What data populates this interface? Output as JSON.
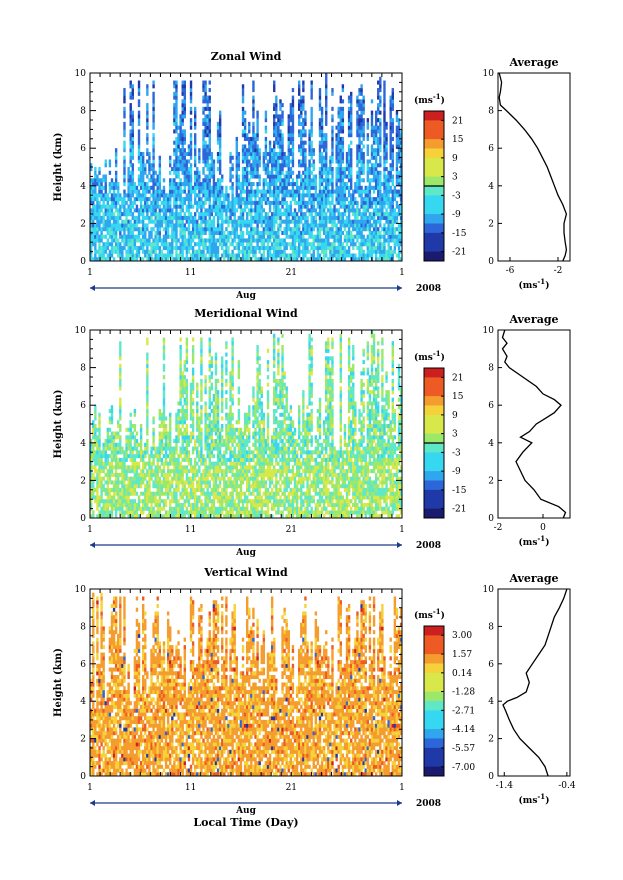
{
  "chart_data": [
    {
      "type": "heatmap",
      "title": "Zonal Wind",
      "ylabel": "Height (km)",
      "ylim": [
        0,
        10
      ],
      "yticks": [
        "0",
        "2",
        "4",
        "6",
        "8",
        "10"
      ],
      "xticks": [
        "1",
        "11",
        "21",
        "1"
      ],
      "xlim_days": [
        1,
        32
      ],
      "xlabel_month": "Aug",
      "year": "2008",
      "colorbar": {
        "unit_prefix": "(ms",
        "unit_exp": "-1",
        "unit_suffix": ")",
        "labels": [
          "21",
          "15",
          "9",
          "3",
          "-3",
          "-9",
          "-15",
          "-21"
        ],
        "range": [
          -24,
          24
        ],
        "zero_line": 0
      },
      "profile": {
        "title": "Average",
        "xticks": [
          "-6",
          "-2"
        ],
        "xlim": [
          -7,
          -1
        ],
        "xunit_prefix": "(ms",
        "xunit_exp": "-1",
        "xunit_suffix": ")",
        "height": [
          0,
          0.3,
          0.6,
          1,
          1.5,
          2,
          2.5,
          3,
          3.5,
          4,
          4.5,
          5,
          5.5,
          6,
          6.5,
          7,
          7.5,
          8,
          8.3,
          8.7,
          9,
          9.5,
          10
        ],
        "value": [
          -1.6,
          -1.4,
          -1.3,
          -1.4,
          -1.5,
          -1.5,
          -1.3,
          -1.6,
          -2.0,
          -2.3,
          -2.6,
          -2.9,
          -3.3,
          -3.7,
          -4.2,
          -4.8,
          -5.5,
          -6.3,
          -6.8,
          -6.9,
          -6.8,
          -6.7,
          -6.9
        ]
      }
    },
    {
      "type": "heatmap",
      "title": "Meridional Wind",
      "ylabel": "Height (km)",
      "ylim": [
        0,
        10
      ],
      "yticks": [
        "0",
        "2",
        "4",
        "6",
        "8",
        "10"
      ],
      "xticks": [
        "1",
        "11",
        "21",
        "1"
      ],
      "xlim_days": [
        1,
        32
      ],
      "xlabel_month": "Aug",
      "year": "2008",
      "colorbar": {
        "unit_prefix": "(ms",
        "unit_exp": "-1",
        "unit_suffix": ")",
        "labels": [
          "21",
          "15",
          "9",
          "3",
          "-3",
          "-9",
          "-15",
          "-21"
        ],
        "range": [
          -24,
          24
        ],
        "zero_line": 0
      },
      "profile": {
        "title": "Average",
        "xticks": [
          "-2",
          "0"
        ],
        "xlim": [
          -2,
          1.2
        ],
        "xunit_prefix": "(ms",
        "xunit_exp": "-1",
        "xunit_suffix": ")",
        "height": [
          0,
          0.3,
          0.6,
          1,
          1.5,
          2,
          2.5,
          3,
          3.5,
          4,
          4.3,
          4.6,
          5,
          5.3,
          5.6,
          6,
          6.3,
          6.6,
          7,
          7.5,
          8,
          8.3,
          8.6,
          9,
          9.3,
          9.6,
          10
        ],
        "value": [
          0.9,
          1.0,
          0.7,
          -0.1,
          -0.4,
          -0.8,
          -1.0,
          -1.2,
          -0.9,
          -0.5,
          -1.0,
          -0.6,
          -0.3,
          0.1,
          0.5,
          0.8,
          0.5,
          0.0,
          -0.3,
          -0.9,
          -1.5,
          -1.7,
          -1.6,
          -1.8,
          -1.6,
          -1.8,
          -1.7
        ]
      }
    },
    {
      "type": "heatmap",
      "title": "Vertical Wind",
      "ylabel": "Height (km)",
      "ylim": [
        0,
        10
      ],
      "yticks": [
        "0",
        "2",
        "4",
        "6",
        "8",
        "10"
      ],
      "xticks": [
        "1",
        "11",
        "21",
        "1"
      ],
      "xlim_days": [
        1,
        32
      ],
      "xlabel_month": "Aug",
      "year": "2008",
      "xlabel": "Local Time (Day)",
      "colorbar": {
        "unit_prefix": "(ms",
        "unit_exp": "-1",
        "unit_suffix": ")",
        "labels": [
          "3.00",
          "1.57",
          "0.14",
          "-1.28",
          "-2.71",
          "-4.14",
          "-5.57",
          "-7.00"
        ],
        "range": [
          -7.7,
          3.7
        ],
        "zero_line": null
      },
      "profile": {
        "title": "Average",
        "xticks": [
          "-1.4",
          "-0.4"
        ],
        "xlim": [
          -1.5,
          -0.35
        ],
        "xunit_prefix": "(ms",
        "xunit_exp": "-1",
        "xunit_suffix": ")",
        "height": [
          0,
          0.5,
          1,
          1.5,
          2,
          2.5,
          3,
          3.5,
          3.8,
          4,
          4.2,
          4.5,
          5,
          5.5,
          6,
          6.5,
          7,
          7.5,
          8,
          8.5,
          9,
          9.5,
          10
        ],
        "value": [
          -0.7,
          -0.75,
          -0.85,
          -1.0,
          -1.15,
          -1.25,
          -1.32,
          -1.38,
          -1.42,
          -1.35,
          -1.2,
          -1.05,
          -1.0,
          -1.05,
          -0.95,
          -0.85,
          -0.75,
          -0.7,
          -0.65,
          -0.6,
          -0.52,
          -0.45,
          -0.4
        ]
      }
    }
  ]
}
